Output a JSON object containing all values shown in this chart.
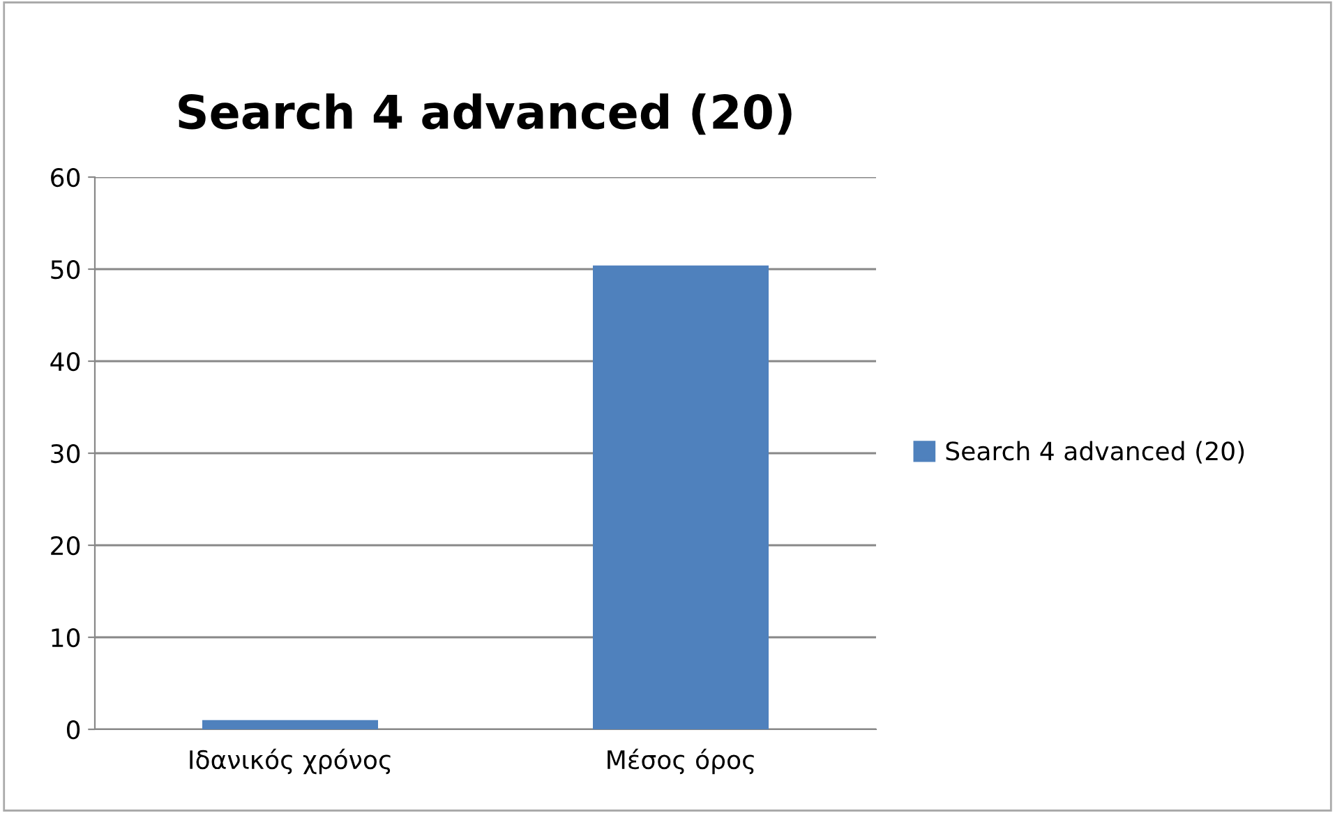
{
  "chart_data": {
    "type": "bar",
    "title": "Search 4 advanced (20)",
    "categories": [
      "Ιδανικός χρόνος",
      "Μέσος όρος"
    ],
    "series": [
      {
        "name": "Search 4 advanced (20)",
        "color": "#4f81bd",
        "values": [
          1,
          50.4
        ]
      }
    ],
    "ylim": [
      0,
      60
    ],
    "yticks": [
      0,
      10,
      20,
      30,
      40,
      50,
      60
    ],
    "grid": "y",
    "legend": "right"
  }
}
